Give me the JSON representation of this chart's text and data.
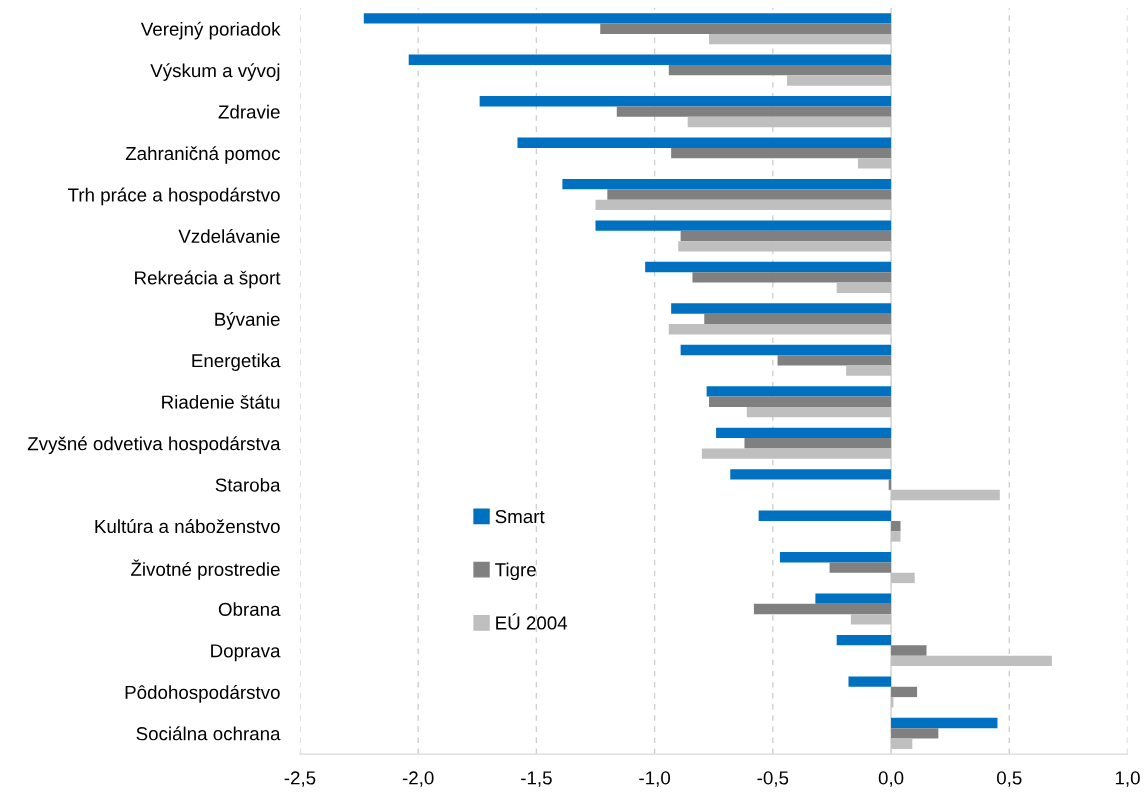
{
  "chart_data": {
    "type": "bar",
    "orientation": "horizontal",
    "categories": [
      "Verejný poriadok",
      "Výskum a vývoj",
      "Zdravie",
      "Zahraničná pomoc",
      "Trh práce a hospodárstvo",
      "Vzdelávanie",
      "Rekreácia a šport",
      "Bývanie",
      "Energetika",
      "Riadenie štátu",
      "Zvyšné odvetiva hospodárstva",
      "Staroba",
      "Kultúra a náboženstvo",
      "Životné prostredie",
      "Obrana",
      "Doprava",
      "Pôdohospodárstvo",
      "Sociálna ochrana"
    ],
    "series": [
      {
        "name": "Smart",
        "color": "#0070c0",
        "values": [
          -2.23,
          -2.04,
          -1.74,
          -1.58,
          -1.39,
          -1.25,
          -1.04,
          -0.93,
          -0.89,
          -0.78,
          -0.74,
          -0.68,
          -0.56,
          -0.47,
          -0.32,
          -0.23,
          -0.18,
          0.45
        ]
      },
      {
        "name": "Tigre",
        "color": "#808080",
        "values": [
          -1.23,
          -0.94,
          -1.16,
          -0.93,
          -1.2,
          -0.89,
          -0.84,
          -0.79,
          -0.48,
          -0.77,
          -0.62,
          -0.01,
          0.04,
          -0.26,
          -0.58,
          0.15,
          0.11,
          0.2
        ]
      },
      {
        "name": "EÚ 2004",
        "color": "#bfbfbf",
        "values": [
          -0.77,
          -0.44,
          -0.86,
          -0.14,
          -1.25,
          -0.9,
          -0.23,
          -0.94,
          -0.19,
          -0.61,
          -0.8,
          0.46,
          0.04,
          0.1,
          -0.17,
          0.68,
          0.01,
          0.09
        ]
      }
    ],
    "xlim": [
      -2.5,
      1.0
    ],
    "xticks": [
      {
        "value": -2.5,
        "label": "-2,5"
      },
      {
        "value": -2.0,
        "label": "-2,0"
      },
      {
        "value": -1.5,
        "label": "-1,5"
      },
      {
        "value": -1.0,
        "label": "-1,0"
      },
      {
        "value": -0.5,
        "label": "-0,5"
      },
      {
        "value": 0.0,
        "label": "0,0"
      },
      {
        "value": 0.5,
        "label": "0,5"
      },
      {
        "value": 1.0,
        "label": "1,0"
      }
    ],
    "ref_lines": [
      {
        "axis": "x",
        "value": 0,
        "color": "#d9d9d9"
      }
    ],
    "grid": "x",
    "legend": "left"
  }
}
